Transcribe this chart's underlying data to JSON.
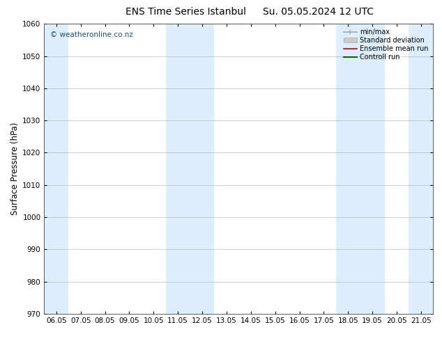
{
  "title1": "ENS Time Series Istanbul",
  "title2": "Su. 05.05.2024 12 UTC",
  "ylabel": "Surface Pressure (hPa)",
  "ylim": [
    970,
    1060
  ],
  "yticks": [
    970,
    980,
    990,
    1000,
    1010,
    1020,
    1030,
    1040,
    1050,
    1060
  ],
  "xtick_labels": [
    "06.05",
    "07.05",
    "08.05",
    "09.05",
    "10.05",
    "11.05",
    "12.05",
    "13.05",
    "14.05",
    "15.05",
    "16.05",
    "17.05",
    "18.05",
    "19.05",
    "20.05",
    "21.05"
  ],
  "xtick_positions": [
    0,
    1,
    2,
    3,
    4,
    5,
    6,
    7,
    8,
    9,
    10,
    11,
    12,
    13,
    14,
    15
  ],
  "xlim": [
    -0.5,
    15.5
  ],
  "shaded_bands": [
    {
      "x_start": -0.5,
      "x_end": 0.5
    },
    {
      "x_start": 4.5,
      "x_end": 5.5
    },
    {
      "x_start": 5.5,
      "x_end": 6.5
    },
    {
      "x_start": 11.5,
      "x_end": 12.5
    },
    {
      "x_start": 12.5,
      "x_end": 13.5
    },
    {
      "x_start": 14.5,
      "x_end": 15.5
    }
  ],
  "band_color": "#ddeeff",
  "watermark_text": "© weatheronline.co.nz",
  "watermark_color": "#1a5276",
  "background_color": "#ffffff",
  "legend_items": [
    {
      "label": "min/max",
      "color": "#aaaaaa",
      "linestyle": "-",
      "linewidth": 1.5
    },
    {
      "label": "Standard deviation",
      "color": "#cccccc",
      "linestyle": "-",
      "linewidth": 6
    },
    {
      "label": "Ensemble mean run",
      "color": "#cc0000",
      "linestyle": "-",
      "linewidth": 1.2
    },
    {
      "label": "Controll run",
      "color": "#006600",
      "linestyle": "-",
      "linewidth": 1.5
    }
  ],
  "grid_color": "#aaaaaa",
  "tick_label_fontsize": 7.5,
  "axis_label_fontsize": 8.5,
  "title_fontsize": 10
}
